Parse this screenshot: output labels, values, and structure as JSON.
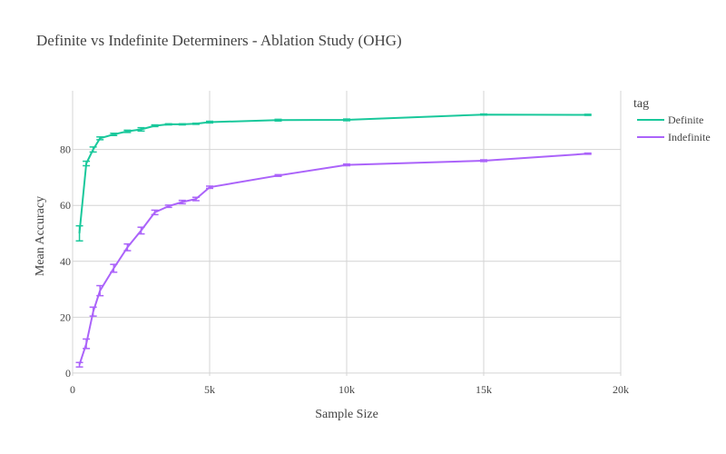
{
  "chart_data": {
    "type": "line",
    "title": "Definite vs Indefinite Determiners - Ablation Study (OHG)",
    "xlabel": "Sample Size",
    "ylabel": "Mean Accuracy",
    "xlim": [
      0,
      20000
    ],
    "ylim": [
      -1,
      101
    ],
    "x_ticks": [
      0,
      5000,
      10000,
      15000,
      20000
    ],
    "x_tick_labels": [
      "0",
      "5k",
      "10k",
      "15k",
      "20k"
    ],
    "y_ticks": [
      0,
      20,
      40,
      60,
      80
    ],
    "y_tick_labels": [
      "0",
      "20",
      "40",
      "60",
      "80"
    ],
    "grid": true,
    "legend": {
      "title": "tag",
      "position": "top-right"
    },
    "series": [
      {
        "name": "Definite",
        "color": "#19c89b",
        "x": [
          250,
          500,
          750,
          1000,
          1500,
          2000,
          2500,
          3000,
          3500,
          4000,
          4500,
          5000,
          7500,
          10000,
          15000,
          18800
        ],
        "y": [
          50,
          75,
          80,
          84,
          85.4,
          86.5,
          87.2,
          88.5,
          89,
          89,
          89.2,
          89.8,
          90.5,
          90.6,
          92.5,
          92.4
        ],
        "error": [
          2.7,
          0.8,
          0.9,
          0.5,
          0.4,
          0.4,
          0.6,
          0.3,
          0.2,
          0.2,
          0.2,
          0.3,
          0.3,
          0.3,
          0.2,
          0.2
        ]
      },
      {
        "name": "Indefinite",
        "color": "#ab63fa",
        "x": [
          250,
          500,
          750,
          1000,
          1500,
          2000,
          2500,
          3000,
          3500,
          4000,
          4500,
          5000,
          7500,
          10000,
          15000,
          18800
        ],
        "y": [
          3,
          10.5,
          22,
          29.5,
          37.5,
          45,
          51,
          57.5,
          59.7,
          61.2,
          62.3,
          66.5,
          70.7,
          74.5,
          76,
          78.5
        ],
        "error": [
          0.8,
          1.7,
          1.6,
          1.8,
          1.4,
          1.2,
          1.2,
          0.8,
          0.4,
          0.6,
          0.6,
          0.4,
          0.3,
          0.3,
          0.3,
          0.2
        ]
      }
    ]
  }
}
